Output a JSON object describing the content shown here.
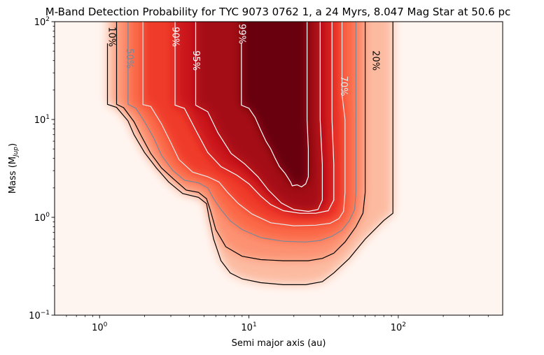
{
  "chart_data": {
    "type": "heatmap",
    "title": "M-Band Detection Probability for TYC 9073 0762 1, a 24 Myrs, 8.047 Mag Star at 50.6 pc",
    "xlabel": "Semi major axis (au)",
    "ylabel_main": "Mass (M",
    "ylabel_sub": "Jup",
    "ylabel_end": ")",
    "x_scale": "log",
    "y_scale": "log",
    "xlim": [
      0.5,
      500
    ],
    "ylim": [
      0.1,
      100
    ],
    "colormap": "Reds",
    "grid": false,
    "x_ticks": [
      {
        "value": 1,
        "base": "10",
        "exp": "0"
      },
      {
        "value": 10,
        "base": "10",
        "exp": "1"
      },
      {
        "value": 100,
        "base": "10",
        "exp": "2"
      }
    ],
    "y_ticks": [
      {
        "value": 0.1,
        "base": "10",
        "exp": "−1"
      },
      {
        "value": 1,
        "base": "10",
        "exp": "0"
      },
      {
        "value": 10,
        "base": "10",
        "exp": "1"
      },
      {
        "value": 100,
        "base": "10",
        "exp": "2"
      }
    ],
    "contours": [
      {
        "level": 10,
        "label": "10%",
        "color": "#000000",
        "label_at": [
          1.2,
          70
        ],
        "points": [
          [
            1.13,
            60
          ],
          [
            1.13,
            14.3
          ],
          [
            1.3,
            13.3
          ],
          [
            1.55,
            9.7
          ],
          [
            1.7,
            7.0
          ],
          [
            2.0,
            4.6
          ],
          [
            2.4,
            3.2
          ],
          [
            2.9,
            2.3
          ],
          [
            3.6,
            1.75
          ],
          [
            4.6,
            1.6
          ],
          [
            5.2,
            1.38
          ],
          [
            5.4,
            1.0
          ],
          [
            5.8,
            0.6
          ],
          [
            6.5,
            0.36
          ],
          [
            7.5,
            0.27
          ],
          [
            9,
            0.235
          ],
          [
            12,
            0.215
          ],
          [
            17,
            0.205
          ],
          [
            24,
            0.205
          ],
          [
            31,
            0.22
          ],
          [
            37,
            0.27
          ],
          [
            47,
            0.38
          ],
          [
            60,
            0.6
          ],
          [
            80,
            0.93
          ],
          [
            92,
            1.1
          ],
          [
            92,
            100
          ]
        ]
      },
      {
        "level": 20,
        "label": "20%",
        "color": "#000000",
        "label_at": [
          70,
          40
        ],
        "points": [
          [
            1.3,
            100
          ],
          [
            1.3,
            14.3
          ],
          [
            1.45,
            13.2
          ],
          [
            1.7,
            9.5
          ],
          [
            1.9,
            6.8
          ],
          [
            2.2,
            4.5
          ],
          [
            2.6,
            3.2
          ],
          [
            3.1,
            2.5
          ],
          [
            3.8,
            1.9
          ],
          [
            4.6,
            1.8
          ],
          [
            5.2,
            1.55
          ],
          [
            5.5,
            1.2
          ],
          [
            6.0,
            0.75
          ],
          [
            7.0,
            0.5
          ],
          [
            9,
            0.4
          ],
          [
            12,
            0.37
          ],
          [
            17,
            0.36
          ],
          [
            25,
            0.36
          ],
          [
            31,
            0.38
          ],
          [
            37,
            0.43
          ],
          [
            44,
            0.56
          ],
          [
            52,
            0.8
          ],
          [
            58,
            1.1
          ],
          [
            60,
            1.8
          ],
          [
            60,
            14
          ],
          [
            60,
            100
          ]
        ]
      },
      {
        "level": 50,
        "label": "50%",
        "color": "#778899",
        "label_at": [
          1.58,
          42
        ],
        "points": [
          [
            1.55,
            100
          ],
          [
            1.55,
            14.3
          ],
          [
            1.75,
            13.0
          ],
          [
            2.0,
            9.5
          ],
          [
            2.3,
            6.5
          ],
          [
            2.6,
            4.3
          ],
          [
            3.1,
            3.0
          ],
          [
            3.7,
            2.4
          ],
          [
            4.6,
            2.25
          ],
          [
            5.3,
            2.0
          ],
          [
            5.8,
            1.55
          ],
          [
            6.5,
            1.2
          ],
          [
            7.5,
            0.92
          ],
          [
            9,
            0.75
          ],
          [
            12,
            0.62
          ],
          [
            17,
            0.57
          ],
          [
            24,
            0.56
          ],
          [
            30,
            0.58
          ],
          [
            36,
            0.64
          ],
          [
            42,
            0.74
          ],
          [
            47,
            0.92
          ],
          [
            51,
            1.2
          ],
          [
            52,
            1.8
          ],
          [
            52,
            100
          ]
        ]
      },
      {
        "level": 70,
        "label": "70%",
        "color": "#e8e8e8",
        "label_at": [
          43,
          22
        ],
        "points": [
          [
            1.95,
            100
          ],
          [
            1.95,
            14.2
          ],
          [
            2.2,
            13.6
          ],
          [
            2.6,
            9.0
          ],
          [
            3.0,
            5.8
          ],
          [
            3.4,
            3.9
          ],
          [
            4.2,
            2.9
          ],
          [
            5.3,
            2.6
          ],
          [
            6.3,
            2.3
          ],
          [
            7.2,
            1.8
          ],
          [
            8.5,
            1.38
          ],
          [
            10.5,
            1.08
          ],
          [
            14,
            0.88
          ],
          [
            20,
            0.82
          ],
          [
            28,
            0.83
          ],
          [
            35,
            0.87
          ],
          [
            40,
            0.97
          ],
          [
            43,
            1.15
          ],
          [
            44,
            1.8
          ],
          [
            44,
            10
          ],
          [
            42,
            18
          ],
          [
            42,
            100
          ]
        ]
      },
      {
        "level": 90,
        "label": "90%",
        "color": "#ffffff",
        "label_at": [
          3.2,
          70
        ],
        "points": [
          [
            3.2,
            100
          ],
          [
            3.2,
            14
          ],
          [
            3.7,
            13
          ],
          [
            4.4,
            7.8
          ],
          [
            5.3,
            4.6
          ],
          [
            6.5,
            3.3
          ],
          [
            8.3,
            2.7
          ],
          [
            10,
            2.2
          ],
          [
            12,
            1.65
          ],
          [
            14,
            1.35
          ],
          [
            17,
            1.17
          ],
          [
            22,
            1.1
          ],
          [
            28,
            1.1
          ],
          [
            34,
            1.17
          ],
          [
            37,
            1.5
          ],
          [
            37,
            3.5
          ],
          [
            36,
            10
          ],
          [
            36,
            100
          ]
        ]
      },
      {
        "level": 95,
        "label": "95%",
        "color": "#ffffff",
        "label_at": [
          4.4,
          40
        ],
        "points": [
          [
            4.4,
            100
          ],
          [
            4.4,
            14
          ],
          [
            5.3,
            12
          ],
          [
            6.2,
            7.3
          ],
          [
            7.6,
            4.5
          ],
          [
            9.4,
            3.5
          ],
          [
            11.5,
            2.6
          ],
          [
            13.5,
            1.9
          ],
          [
            16.5,
            1.4
          ],
          [
            20,
            1.2
          ],
          [
            25,
            1.15
          ],
          [
            29,
            1.2
          ],
          [
            31,
            1.5
          ],
          [
            31,
            3.5
          ],
          [
            30,
            10
          ],
          [
            30,
            100
          ]
        ]
      },
      {
        "level": 99,
        "label": "99%",
        "color": "#ffffff",
        "label_at": [
          8.9,
          75
        ],
        "points": [
          [
            8.9,
            60
          ],
          [
            8.9,
            14
          ],
          [
            10,
            13
          ],
          [
            11,
            10.5
          ],
          [
            12,
            7.8
          ],
          [
            13,
            6
          ],
          [
            14,
            5
          ],
          [
            15,
            4
          ],
          [
            16,
            3.3
          ],
          [
            17.5,
            2.8
          ],
          [
            19,
            2.3
          ],
          [
            19.5,
            2.1
          ],
          [
            21,
            2.15
          ],
          [
            22.5,
            2.05
          ],
          [
            24,
            2.2
          ],
          [
            25,
            2.6
          ],
          [
            25,
            5
          ],
          [
            24.5,
            10
          ],
          [
            24.5,
            100
          ]
        ]
      }
    ]
  }
}
